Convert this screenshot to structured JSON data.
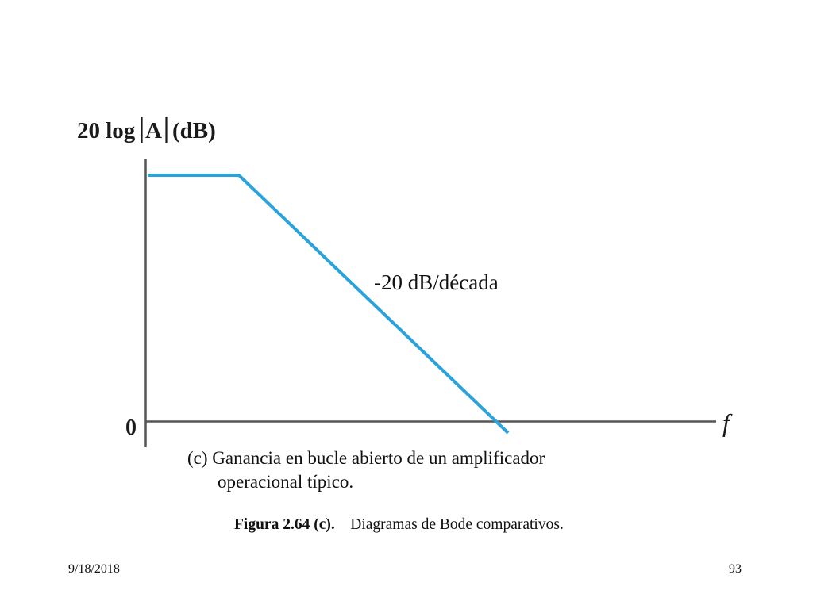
{
  "diagram": {
    "y_axis_label": "20 log|A| (dB)",
    "y_axis_label_parts": {
      "prefix": "20 log",
      "variable": "A",
      "unit": "(dB)"
    },
    "x_axis_label": "f",
    "zero_label": "0",
    "slope_label": "-20 dB/década",
    "curve_color": "#2aa3dc",
    "axis_color": "#555555"
  },
  "caption": {
    "line1": "(c)  Ganancia en bucle abierto de un amplificador",
    "line2": "operacional típico."
  },
  "figure_caption": {
    "number": "Figura 2.64 (c).",
    "text": "Diagramas de Bode comparativos."
  },
  "footer": {
    "date": "9/18/2018",
    "page": "93"
  }
}
